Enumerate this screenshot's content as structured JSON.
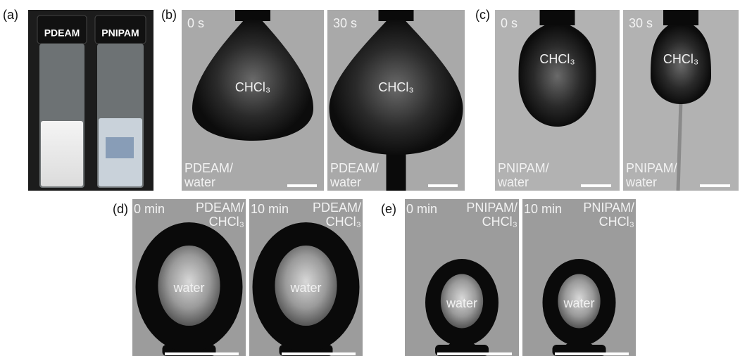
{
  "panel_a": {
    "label": "(a)",
    "vials": [
      "PDEAM",
      "PNIPAM"
    ]
  },
  "panel_b": {
    "label": "(b)",
    "frames": [
      {
        "time": "0 s",
        "drop": "CHCl₃",
        "medium": [
          "PDEAM/",
          "water"
        ]
      },
      {
        "time": "30 s",
        "drop": "CHCl₃",
        "medium": [
          "PDEAM/",
          "water"
        ]
      }
    ]
  },
  "panel_c": {
    "label": "(c)",
    "frames": [
      {
        "time": "0 s",
        "drop": "CHCl₃",
        "medium": [
          "PNIPAM/",
          "water"
        ]
      },
      {
        "time": "30 s",
        "drop": "CHCl₃",
        "medium": [
          "PNIPAM/",
          "water"
        ]
      }
    ]
  },
  "panel_d": {
    "label": "(d)",
    "frames": [
      {
        "time": "0 min",
        "drop": "water",
        "medium": [
          "PDEAM/",
          "CHCl₃"
        ]
      },
      {
        "time": "10 min",
        "drop": "water",
        "medium": [
          "PDEAM/",
          "CHCl₃"
        ]
      }
    ]
  },
  "panel_e": {
    "label": "(e)",
    "frames": [
      {
        "time": "0 min",
        "drop": "water",
        "medium": [
          "PNIPAM/",
          "CHCl₃"
        ]
      },
      {
        "time": "10 min",
        "drop": "water",
        "medium": [
          "PNIPAM/",
          "CHCl₃"
        ]
      }
    ]
  }
}
